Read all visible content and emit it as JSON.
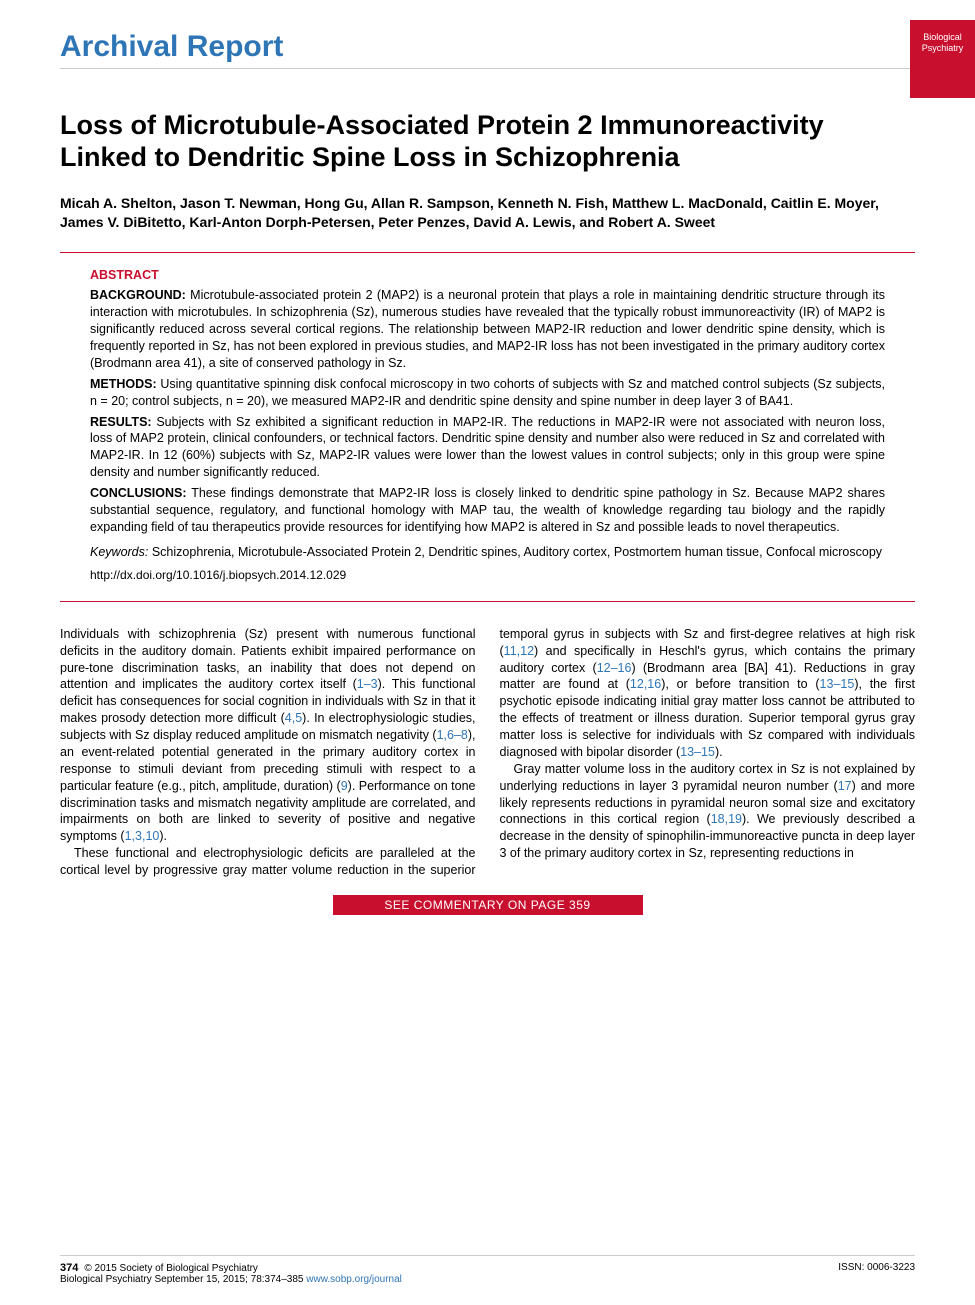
{
  "journal_badge": {
    "line1": "Biological",
    "line2": "Psychiatry"
  },
  "section_header": "Archival Report",
  "title": "Loss of Microtubule-Associated Protein 2 Immunoreactivity Linked to Dendritic Spine Loss in Schizophrenia",
  "authors": "Micah A. Shelton, Jason T. Newman, Hong Gu, Allan R. Sampson, Kenneth N. Fish, Matthew L. MacDonald, Caitlin E. Moyer, James V. DiBitetto, Karl-Anton Dorph-Petersen, Peter Penzes, David A. Lewis, and Robert A. Sweet",
  "abstract": {
    "label": "ABSTRACT",
    "background_label": "BACKGROUND:",
    "background": "Microtubule-associated protein 2 (MAP2) is a neuronal protein that plays a role in maintaining dendritic structure through its interaction with microtubules. In schizophrenia (Sz), numerous studies have revealed that the typically robust immunoreactivity (IR) of MAP2 is significantly reduced across several cortical regions. The relationship between MAP2-IR reduction and lower dendritic spine density, which is frequently reported in Sz, has not been explored in previous studies, and MAP2-IR loss has not been investigated in the primary auditory cortex (Brodmann area 41), a site of conserved pathology in Sz.",
    "methods_label": "METHODS:",
    "methods": "Using quantitative spinning disk confocal microscopy in two cohorts of subjects with Sz and matched control subjects (Sz subjects, n = 20; control subjects, n = 20), we measured MAP2-IR and dendritic spine density and spine number in deep layer 3 of BA41.",
    "results_label": "RESULTS:",
    "results": "Subjects with Sz exhibited a significant reduction in MAP2-IR. The reductions in MAP2-IR were not associated with neuron loss, loss of MAP2 protein, clinical confounders, or technical factors. Dendritic spine density and number also were reduced in Sz and correlated with MAP2-IR. In 12 (60%) subjects with Sz, MAP2-IR values were lower than the lowest values in control subjects; only in this group were spine density and number significantly reduced.",
    "conclusions_label": "CONCLUSIONS:",
    "conclusions": "These findings demonstrate that MAP2-IR loss is closely linked to dendritic spine pathology in Sz. Because MAP2 shares substantial sequence, regulatory, and functional homology with MAP tau, the wealth of knowledge regarding tau biology and the rapidly expanding field of tau therapeutics provide resources for identifying how MAP2 is altered in Sz and possible leads to novel therapeutics.",
    "keywords_label": "Keywords:",
    "keywords": "Schizophrenia, Microtubule-Associated Protein 2, Dendritic spines, Auditory cortex, Postmortem human tissue, Confocal microscopy",
    "doi": "http://dx.doi.org/10.1016/j.biopsych.2014.12.029"
  },
  "body": {
    "p1a": "Individuals with schizophrenia (Sz) present with numerous functional deficits in the auditory domain. Patients exhibit impaired performance on pure-tone discrimination tasks, an inability that does not depend on attention and implicates the auditory cortex itself (",
    "c1": "1–3",
    "p1b": "). This functional deficit has consequences for social cognition in individuals with Sz in that it makes prosody detection more difficult (",
    "c2": "4,5",
    "p1c": "). In electrophysiologic studies, subjects with Sz display reduced amplitude on mismatch negativity (",
    "c3": "1,6–8",
    "p1d": "), an event-related potential generated in the primary auditory cortex in response to stimuli deviant from preceding stimuli with respect to a particular feature (e.g., pitch, amplitude, duration) (",
    "c4": "9",
    "p1e": "). Performance on tone discrimination tasks and mismatch negativity amplitude are correlated, and impairments on both are linked to severity of positive and negative symptoms (",
    "c5": "1,3,10",
    "p1f": ").",
    "p2a": "These functional and electrophysiologic deficits are paralleled at the cortical level by progressive gray matter volume ",
    "p2b": "reduction in the superior temporal gyrus in subjects with Sz and first-degree relatives at high risk (",
    "c6": "11,12",
    "p2c": ") and specifically in Heschl's gyrus, which contains the primary auditory cortex (",
    "c7": "12–16",
    "p2d": ") (Brodmann area [BA] 41). Reductions in gray matter are found at (",
    "c8": "12,16",
    "p2e": "), or before transition to (",
    "c9": "13–15",
    "p2f": "), the first psychotic episode indicating initial gray matter loss cannot be attributed to the effects of treatment or illness duration. Superior temporal gyrus gray matter loss is selective for individuals with Sz compared with individuals diagnosed with bipolar disorder (",
    "c10": "13–15",
    "p2g": ").",
    "p3a": "Gray matter volume loss in the auditory cortex in Sz is not explained by underlying reductions in layer 3 pyramidal neuron number (",
    "c11": "17",
    "p3b": ") and more likely represents reductions in pyramidal neuron somal size and excitatory connections in this cortical region (",
    "c12": "18,19",
    "p3c": "). We previously described a decrease in the density of spinophilin-immunoreactive puncta in deep layer 3 of the primary auditory cortex in Sz, representing reductions in"
  },
  "commentary": "SEE COMMENTARY ON PAGE 359",
  "footer": {
    "page_num": "374",
    "copyright": "© 2015 Society of Biological Psychiatry",
    "citation": "Biological Psychiatry September 15, 2015; 78:374–385 ",
    "url": "www.sobp.org/journal",
    "issn": "ISSN: 0006-3223"
  },
  "colors": {
    "brand_red": "#c8102e",
    "brand_blue": "#2e75b6",
    "rule_gray": "#cccccc"
  }
}
